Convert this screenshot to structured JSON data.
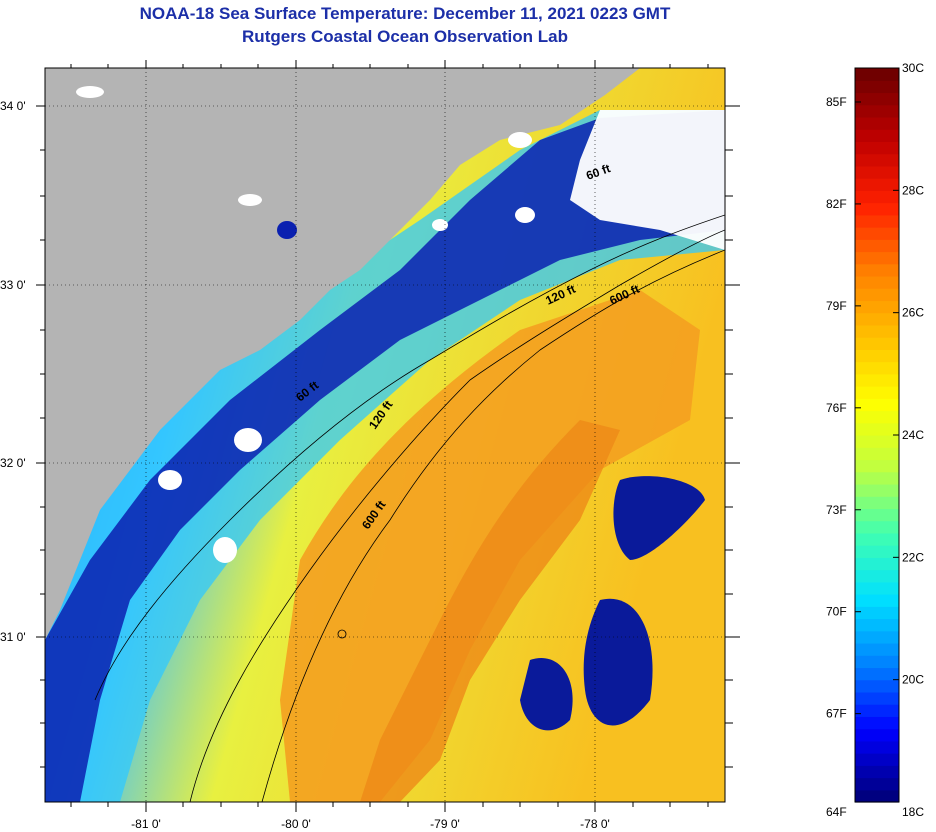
{
  "header": {
    "title": "NOAA-18 Sea Surface Temperature:  December 11, 2021 0223 GMT",
    "subtitle": "Rutgers Coastal Ocean Observation Lab"
  },
  "map": {
    "lat_ticks": [
      "34 0'",
      "33 0'",
      "32 0'",
      "31 0'"
    ],
    "lon_ticks": [
      "-81 0'",
      "-80 0'",
      "-79 0'",
      "-78 0'"
    ],
    "depth_labels": [
      {
        "text": "60 ft",
        "rotate": -20
      },
      {
        "text": "120 ft",
        "rotate": -25
      },
      {
        "text": "600 ft",
        "rotate": -25
      },
      {
        "text": "60 ft",
        "rotate": -40
      },
      {
        "text": "120 ft",
        "rotate": -55
      },
      {
        "text": "600 ft",
        "rotate": -55
      }
    ],
    "land_color": "#b4b4b4",
    "cloud_color": "#ffffff"
  },
  "colorbar": {
    "fahrenheit_labels": [
      "85F",
      "82F",
      "79F",
      "76F",
      "73F",
      "70F",
      "67F",
      "64F"
    ],
    "celsius_labels": [
      "30C",
      "28C",
      "26C",
      "24C",
      "22C",
      "20C",
      "18C"
    ],
    "temp_min_c": 18,
    "temp_max_c": 30,
    "colors": [
      "#000080",
      "#0000ff",
      "#0080ff",
      "#00e0ff",
      "#40ffb0",
      "#c0ff40",
      "#ffff00",
      "#ffc000",
      "#ff8000",
      "#ff2000",
      "#c00000",
      "#700000"
    ]
  }
}
